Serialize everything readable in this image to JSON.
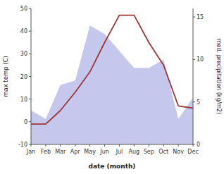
{
  "chart_data": {
    "type": "line",
    "categories": [
      "Jan",
      "Feb",
      "Mar",
      "Apr",
      "May",
      "Jun",
      "Jul",
      "Aug",
      "Sep",
      "Oct",
      "Nov",
      "Dec"
    ],
    "series": [
      {
        "type": "area",
        "axis": "y2",
        "color": "#c5c8ec",
        "values": [
          4.0,
          3.0,
          7.0,
          7.5,
          14.0,
          13.0,
          11.0,
          9.0,
          9.0,
          10.0,
          3.0,
          5.5
        ]
      },
      {
        "type": "line",
        "color": "#9e3535",
        "values": [
          -1,
          -1,
          5,
          13,
          22,
          35,
          47,
          47,
          35,
          25,
          7,
          6
        ]
      }
    ],
    "xlabel": "date (month)",
    "ylabel": "max temp (C)",
    "y2label": "med. precipitation (kg/m2)",
    "ylim": [
      -10,
      50
    ],
    "yticks": [
      -10,
      0,
      10,
      20,
      30,
      40,
      50
    ],
    "y2lim": [
      0,
      16
    ],
    "y2ticks": [
      0,
      5,
      10,
      15
    ],
    "grid": false
  }
}
